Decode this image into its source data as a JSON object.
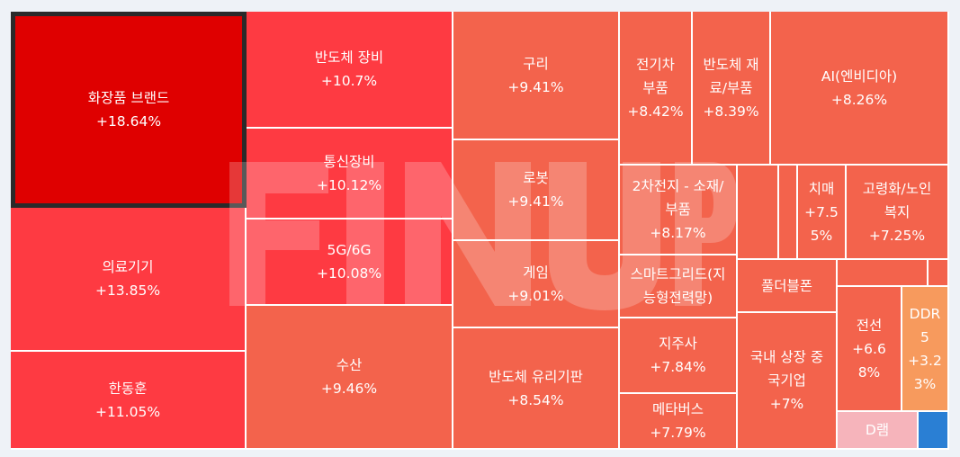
{
  "chart_data": {
    "type": "treemap",
    "watermark": "FINUP",
    "colors": {
      "dark_red": "#df0000",
      "red": "#fe3a42",
      "orange_red": "#f3634c",
      "light_orange": "#f79a5d",
      "pink": "#f6b4bb",
      "blue": "#2a7fd4"
    },
    "tiles": [
      {
        "name": "화장품 브랜드",
        "change": "+18.64%",
        "selected": true
      },
      {
        "name": "의료기기",
        "change": "+13.85%"
      },
      {
        "name": "한동훈",
        "change": "+11.05%"
      },
      {
        "name": "반도체 장비",
        "change": "+10.7%"
      },
      {
        "name": "통신장비",
        "change": "+10.12%"
      },
      {
        "name": "5G/6G",
        "change": "+10.08%"
      },
      {
        "name": "수산",
        "change": "+9.46%"
      },
      {
        "name": "구리",
        "change": "+9.41%"
      },
      {
        "name": "로봇",
        "change": "+9.41%"
      },
      {
        "name": "게임",
        "change": "+9.01%"
      },
      {
        "name": "반도체 유리기판",
        "change": "+8.54%"
      },
      {
        "name": "전기차\n부품",
        "change": "+8.42%"
      },
      {
        "name": "반도체 재\n료/부품",
        "change": "+8.39%"
      },
      {
        "name": "AI(엔비디아)",
        "change": "+8.26%"
      },
      {
        "name": "2차전지 - 소재/\n부품",
        "change": "+8.17%"
      },
      {
        "name": "치매",
        "change": "+7.5\n5%"
      },
      {
        "name": "고령화/노인\n복지",
        "change": "+7.25%"
      },
      {
        "name": "스마트그리드(지\n능형전력망)",
        "change": ""
      },
      {
        "name": "지주사",
        "change": "+7.84%"
      },
      {
        "name": "메타버스",
        "change": "+7.79%"
      },
      {
        "name": "풀더블폰",
        "change": ""
      },
      {
        "name": "국내 상장 중\n국기업",
        "change": "+7%"
      },
      {
        "name": "전선",
        "change": "+6.6\n8%"
      },
      {
        "name": "DDR\n5",
        "change": "+3.2\n3%"
      },
      {
        "name": "D램",
        "change": ""
      },
      {
        "name": "",
        "change": ""
      },
      {
        "name": "",
        "change": ""
      },
      {
        "name": "",
        "change": ""
      },
      {
        "name": "",
        "change": ""
      },
      {
        "name": "",
        "change": ""
      }
    ]
  }
}
